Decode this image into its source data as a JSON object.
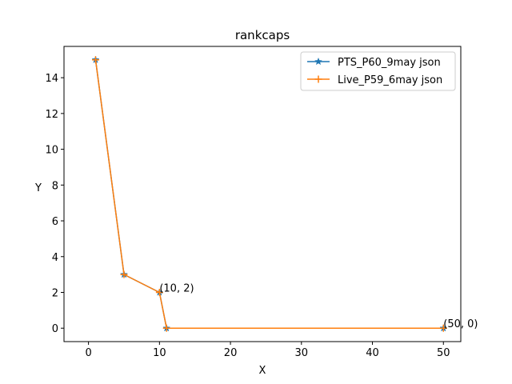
{
  "chart_data": {
    "type": "line",
    "title": "rankcaps",
    "xlabel": "X",
    "ylabel": "Y",
    "xlim": [
      -3.45,
      52.45
    ],
    "ylim": [
      -0.75,
      15.75
    ],
    "xticks": [
      0,
      10,
      20,
      30,
      40,
      50
    ],
    "yticks": [
      0,
      2,
      4,
      6,
      8,
      10,
      12,
      14
    ],
    "grid": false,
    "legend_position": "top-right",
    "series": [
      {
        "name": "PTS_P60_9may json",
        "color": "#1f77b4",
        "marker": "star",
        "x": [
          1,
          5,
          10,
          11,
          50
        ],
        "y": [
          15,
          3,
          2,
          0,
          0
        ]
      },
      {
        "name": "Live_P59_6may json",
        "color": "#ff7f0e",
        "marker": "plus",
        "x": [
          1,
          5,
          10,
          11,
          50
        ],
        "y": [
          15,
          3,
          2,
          0,
          0
        ]
      }
    ],
    "annotations": [
      {
        "text": "(10, 2)",
        "x": 10,
        "y": 2
      },
      {
        "text": "(50, 0)",
        "x": 50,
        "y": 0
      }
    ]
  }
}
